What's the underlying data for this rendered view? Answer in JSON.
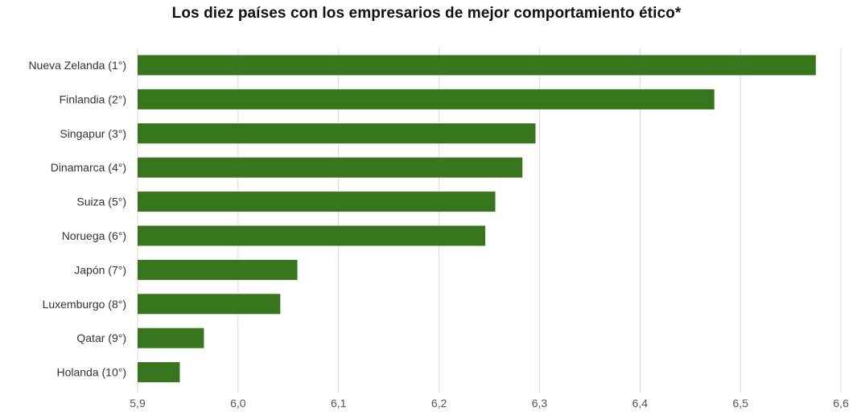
{
  "chart_data": {
    "type": "bar",
    "orientation": "horizontal",
    "title": "Los diez países con los empresarios de mejor comportamiento ético*",
    "xlabel": "",
    "ylabel": "",
    "categories": [
      "Nueva Zelanda (1°)",
      "Finlandia (2°)",
      "Singapur (3°)",
      "Dinamarca (4°)",
      "Suiza (5°)",
      "Noruega (6°)",
      "Japón (7°)",
      "Luxemburgo (8°)",
      "Qatar (9°)",
      "Holanda (10°)"
    ],
    "values": [
      6.575,
      6.474,
      6.296,
      6.283,
      6.256,
      6.246,
      6.059,
      6.042,
      5.966,
      5.942
    ],
    "xlim": [
      5.9,
      6.6
    ],
    "xticks": [
      5.9,
      6.0,
      6.1,
      6.2,
      6.3,
      6.4,
      6.5,
      6.6
    ],
    "xtick_labels": [
      "5,9",
      "6,0",
      "6,1",
      "6,2",
      "6,3",
      "6,4",
      "6,5",
      "6,6"
    ],
    "grid": "vertical",
    "legend": "none",
    "colors": {
      "bar": "#38761d",
      "grid": "#d9d9d9",
      "title": "#111111",
      "label": "#333333"
    }
  }
}
